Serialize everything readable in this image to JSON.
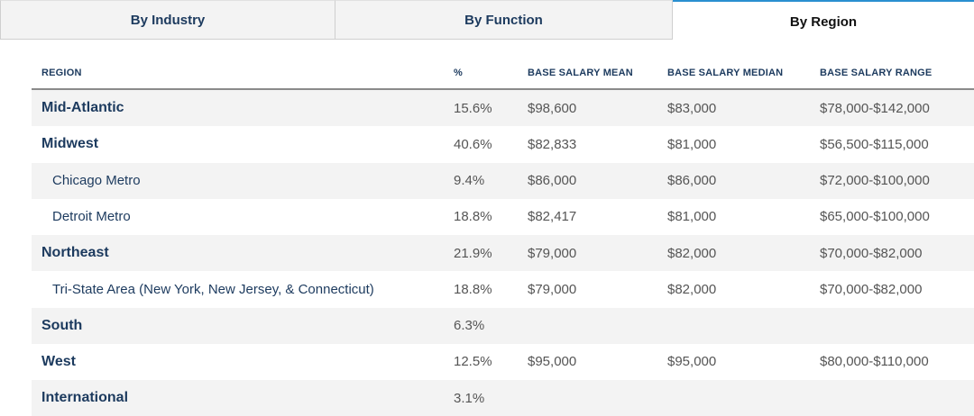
{
  "tabs": [
    {
      "label": "By Industry",
      "active": false
    },
    {
      "label": "By Function",
      "active": false
    },
    {
      "label": "By Region",
      "active": true
    }
  ],
  "table": {
    "headers": {
      "region": "REGION",
      "pct": "%",
      "mean": "BASE SALARY MEAN",
      "median": "BASE SALARY MEDIAN",
      "range": "BASE SALARY RANGE"
    },
    "rows": [
      {
        "region": "Mid-Atlantic",
        "sub": false,
        "pct": "15.6%",
        "mean": "$98,600",
        "median": "$83,000",
        "range": "$78,000-$142,000"
      },
      {
        "region": "Midwest",
        "sub": false,
        "pct": "40.6%",
        "mean": "$82,833",
        "median": "$81,000",
        "range": "$56,500-$115,000"
      },
      {
        "region": "Chicago Metro",
        "sub": true,
        "pct": "9.4%",
        "mean": "$86,000",
        "median": "$86,000",
        "range": "$72,000-$100,000"
      },
      {
        "region": "Detroit Metro",
        "sub": true,
        "pct": "18.8%",
        "mean": "$82,417",
        "median": "$81,000",
        "range": "$65,000-$100,000"
      },
      {
        "region": "Northeast",
        "sub": false,
        "pct": "21.9%",
        "mean": "$79,000",
        "median": "$82,000",
        "range": "$70,000-$82,000"
      },
      {
        "region": "Tri-State Area (New York, New Jersey, & Connecticut)",
        "sub": true,
        "pct": "18.8%",
        "mean": "$79,000",
        "median": "$82,000",
        "range": "$70,000-$82,000"
      },
      {
        "region": "South",
        "sub": false,
        "pct": "6.3%",
        "mean": "",
        "median": "",
        "range": ""
      },
      {
        "region": "West",
        "sub": false,
        "pct": "12.5%",
        "mean": "$95,000",
        "median": "$95,000",
        "range": "$80,000-$110,000"
      },
      {
        "region": "International",
        "sub": false,
        "pct": "3.1%",
        "mean": "",
        "median": "",
        "range": ""
      }
    ]
  },
  "colors": {
    "accent": "#2a8fd0",
    "text_primary": "#1c3a5e",
    "row_alt": "#f3f3f3"
  }
}
